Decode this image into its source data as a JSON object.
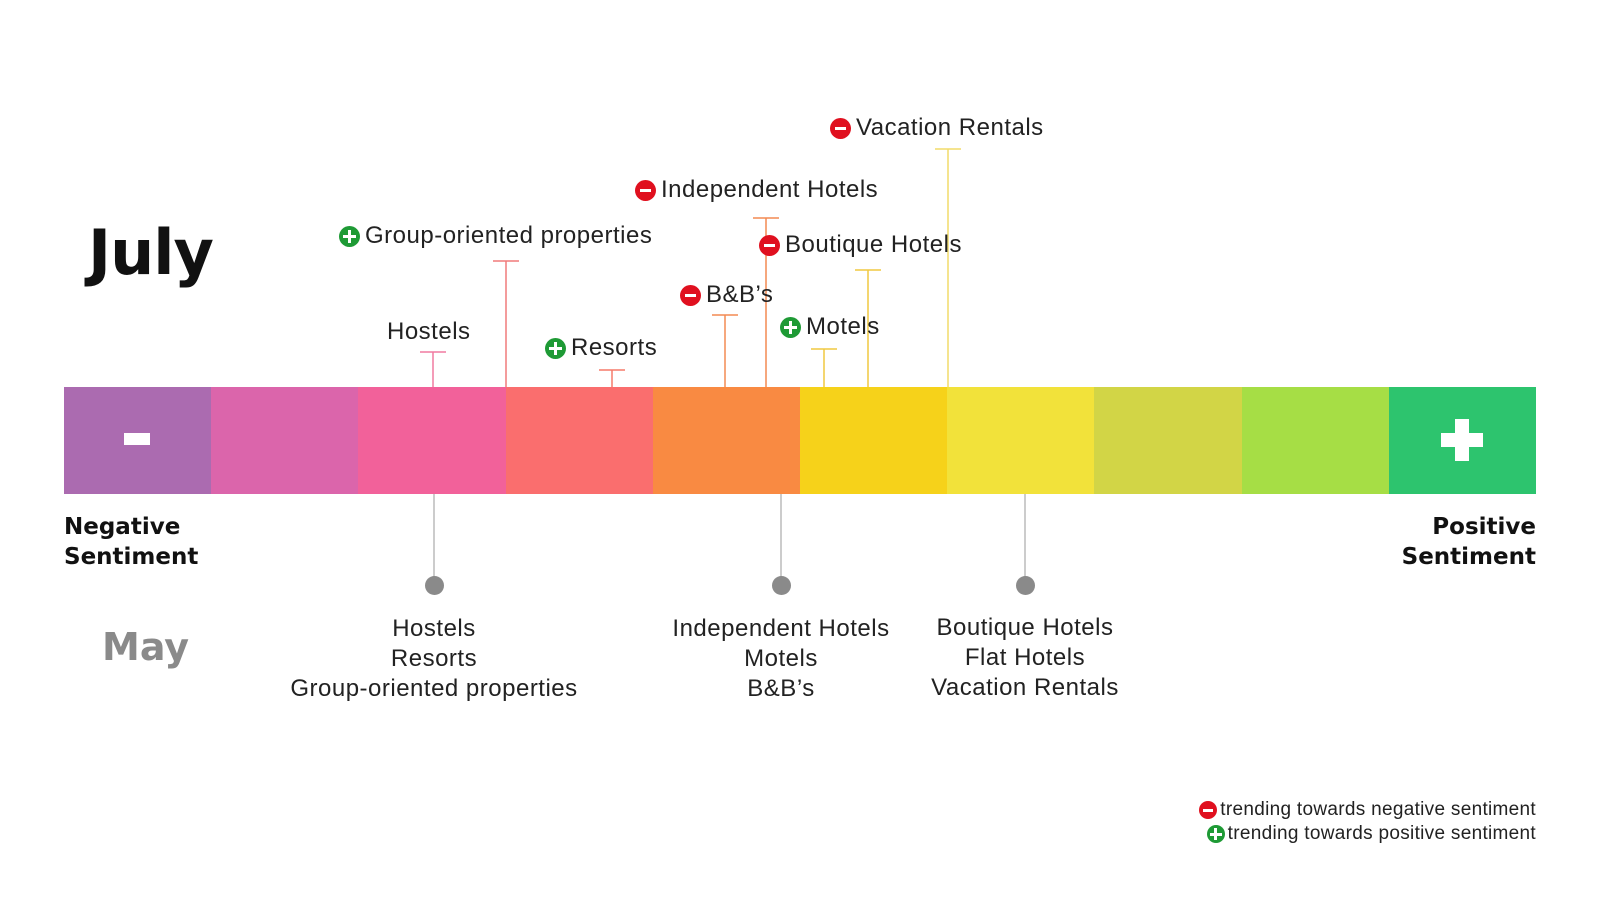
{
  "months": {
    "current": "July",
    "previous": "May"
  },
  "scale": {
    "negative_label": [
      "Negative",
      "Sentiment"
    ],
    "positive_label": [
      "Positive",
      "Sentiment"
    ],
    "negative_symbol": "minus-icon",
    "positive_symbol": "plus-icon",
    "segment_colors": [
      "#ab6bb0",
      "#db65ab",
      "#f2619a",
      "#fa6e6e",
      "#f98a42",
      "#f6d21a",
      "#f2e23a",
      "#d2d546",
      "#a6de45",
      "#2dc46e"
    ]
  },
  "july": [
    {
      "name": "Hostels",
      "trend": "none"
    },
    {
      "name": "Group-oriented properties",
      "trend": "positive"
    },
    {
      "name": "Resorts",
      "trend": "positive"
    },
    {
      "name": "B&B’s",
      "trend": "negative"
    },
    {
      "name": "Independent Hotels",
      "trend": "negative"
    },
    {
      "name": "Motels",
      "trend": "positive"
    },
    {
      "name": "Boutique Hotels",
      "trend": "negative"
    },
    {
      "name": "Vacation Rentals",
      "trend": "negative"
    }
  ],
  "may_groups": [
    {
      "items": [
        "Hostels",
        "Resorts",
        "Group-oriented properties"
      ]
    },
    {
      "items": [
        "Independent Hotels",
        "Motels",
        "B&B’s"
      ]
    },
    {
      "items": [
        "Boutique Hotels",
        "Flat Hotels",
        "Vacation Rentals"
      ]
    }
  ],
  "legend": {
    "negative": "trending towards negative sentiment",
    "positive": "trending towards positive sentiment"
  },
  "colors": {
    "negative_badge": "#e0101f",
    "positive_badge": "#1e9a35",
    "may_dot": "#8a8a8a"
  }
}
